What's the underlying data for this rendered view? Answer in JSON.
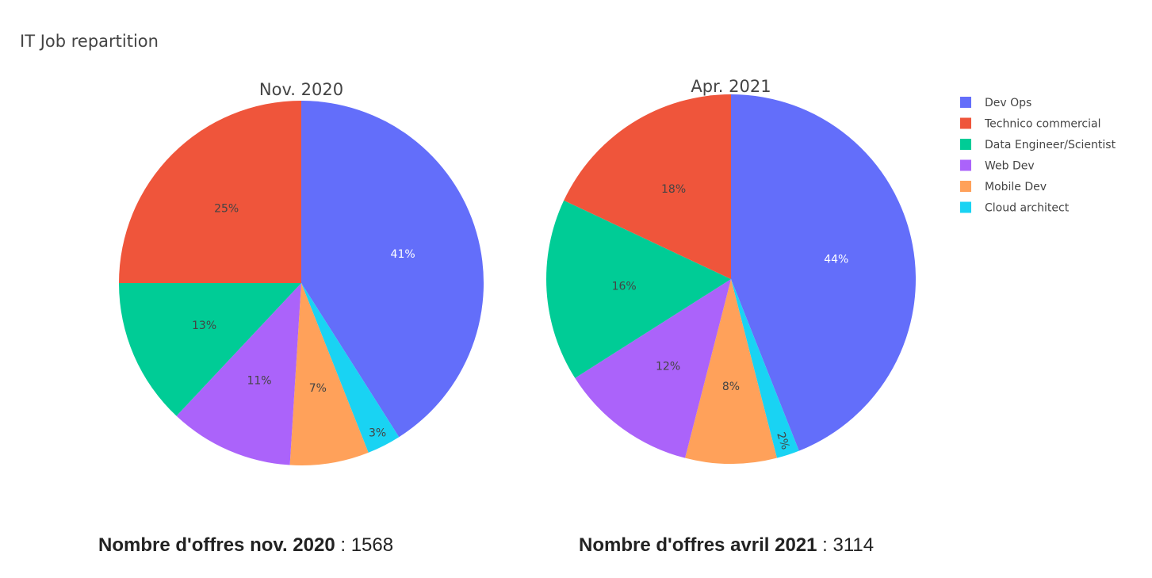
{
  "title": "IT Job repartition",
  "chart_data": {
    "type": "pie",
    "title": "IT Job repartition",
    "legend_position": "top-right",
    "legend": [
      {
        "name": "Dev Ops",
        "color": "#636efa"
      },
      {
        "name": "Technico commercial",
        "color": "#ef553b"
      },
      {
        "name": "Data Engineer/Scientist",
        "color": "#00cc96"
      },
      {
        "name": "Web Dev",
        "color": "#ab63fa"
      },
      {
        "name": "Mobile Dev",
        "color": "#ffa15a"
      },
      {
        "name": "Cloud architect",
        "color": "#19d3f3"
      }
    ],
    "pies": [
      {
        "title": "Nov. 2020",
        "slices": [
          {
            "name": "Dev Ops",
            "value": 41,
            "label": "41%"
          },
          {
            "name": "Cloud architect",
            "value": 3,
            "label": "3%"
          },
          {
            "name": "Mobile Dev",
            "value": 7,
            "label": "7%"
          },
          {
            "name": "Web Dev",
            "value": 11,
            "label": "11%"
          },
          {
            "name": "Data Engineer/Scientist",
            "value": 13,
            "label": "13%"
          },
          {
            "name": "Technico commercial",
            "value": 25,
            "label": "25%"
          }
        ]
      },
      {
        "title": "Apr. 2021",
        "slices": [
          {
            "name": "Dev Ops",
            "value": 44,
            "label": "44%"
          },
          {
            "name": "Cloud architect",
            "value": 2,
            "label": "2%"
          },
          {
            "name": "Mobile Dev",
            "value": 8,
            "label": "8%"
          },
          {
            "name": "Web Dev",
            "value": 12,
            "label": "12%"
          },
          {
            "name": "Data Engineer/Scientist",
            "value": 16,
            "label": "16%"
          },
          {
            "name": "Technico commercial",
            "value": 18,
            "label": "18%"
          }
        ]
      }
    ]
  },
  "footer": {
    "nov": {
      "label": "Nombre d'offres nov. 2020",
      "separator": " : ",
      "value": "1568"
    },
    "apr": {
      "label": "Nombre d'offres avril 2021",
      "separator": " : ",
      "value": "3114"
    }
  }
}
